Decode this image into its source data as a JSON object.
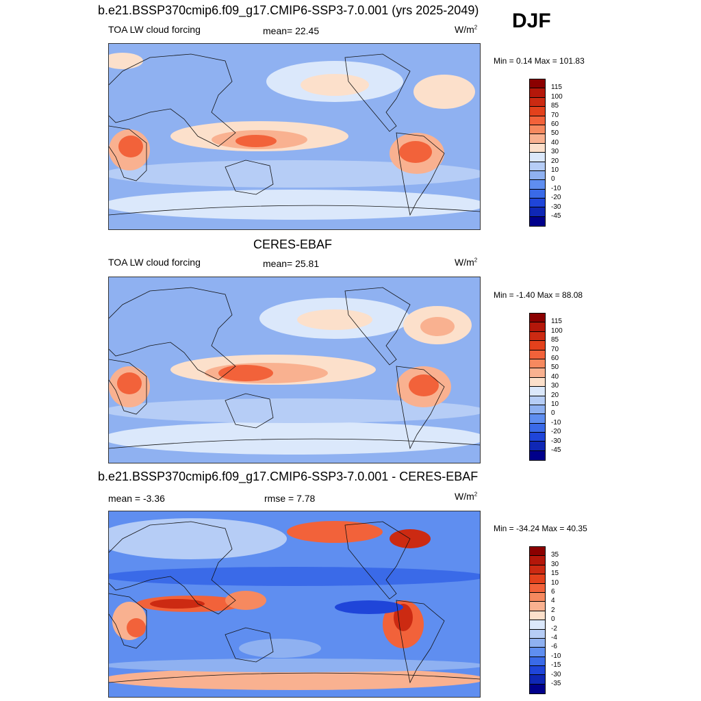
{
  "season": "DJF",
  "panels": [
    {
      "title": "b.e21.BSSP370cmip6.f09_g17.CMIP6-SSP3-7.0.001 (yrs 2025-2049)",
      "variable": "TOA LW cloud forcing",
      "stat1": "mean=  22.45",
      "stat2": "",
      "units": "W/m",
      "units_sup": "2",
      "minmax": "Min =   0.14 Max = 101.83",
      "levels": [
        "115",
        "100",
        "85",
        "70",
        "60",
        "50",
        "40",
        "30",
        "20",
        "10",
        "0",
        "-10",
        "-20",
        "-30",
        "-45"
      ],
      "colors": [
        "#8b0000",
        "#b4170a",
        "#cc2a12",
        "#e3411c",
        "#f2623a",
        "#f6895f",
        "#f9b190",
        "#fce0cb",
        "#dbe8fb",
        "#b6cdf6",
        "#8fb1f1",
        "#5f8ef0",
        "#3a6ae8",
        "#1f45d9",
        "#0f27b5",
        "#00008b"
      ]
    },
    {
      "title": "CERES-EBAF",
      "variable": "TOA LW cloud forcing",
      "stat1": "mean=  25.81",
      "stat2": "",
      "units": "W/m",
      "units_sup": "2",
      "minmax": "Min =  -1.40 Max =  88.08",
      "levels": [
        "115",
        "100",
        "85",
        "70",
        "60",
        "50",
        "40",
        "30",
        "20",
        "10",
        "0",
        "-10",
        "-20",
        "-30",
        "-45"
      ],
      "colors": [
        "#8b0000",
        "#b4170a",
        "#cc2a12",
        "#e3411c",
        "#f2623a",
        "#f6895f",
        "#f9b190",
        "#fce0cb",
        "#dbe8fb",
        "#b6cdf6",
        "#8fb1f1",
        "#5f8ef0",
        "#3a6ae8",
        "#1f45d9",
        "#0f27b5",
        "#00008b"
      ]
    },
    {
      "title": "b.e21.BSSP370cmip6.f09_g17.CMIP6-SSP3-7.0.001 - CERES-EBAF",
      "variable": "",
      "stat1": "mean =  -3.36",
      "stat2": "rmse =   7.78",
      "units": "W/m",
      "units_sup": "2",
      "minmax": "Min = -34.24 Max =  40.35",
      "levels": [
        "35",
        "30",
        "15",
        "10",
        "6",
        "4",
        "2",
        "0",
        "-2",
        "-4",
        "-6",
        "-10",
        "-15",
        "-30",
        "-35"
      ],
      "colors": [
        "#8b0000",
        "#b4170a",
        "#cc2a12",
        "#e3411c",
        "#f2623a",
        "#f6895f",
        "#f9b190",
        "#fce0cb",
        "#dbe8fb",
        "#b6cdf6",
        "#8fb1f1",
        "#5f8ef0",
        "#3a6ae8",
        "#1f45d9",
        "#0f27b5",
        "#00008b"
      ]
    }
  ]
}
